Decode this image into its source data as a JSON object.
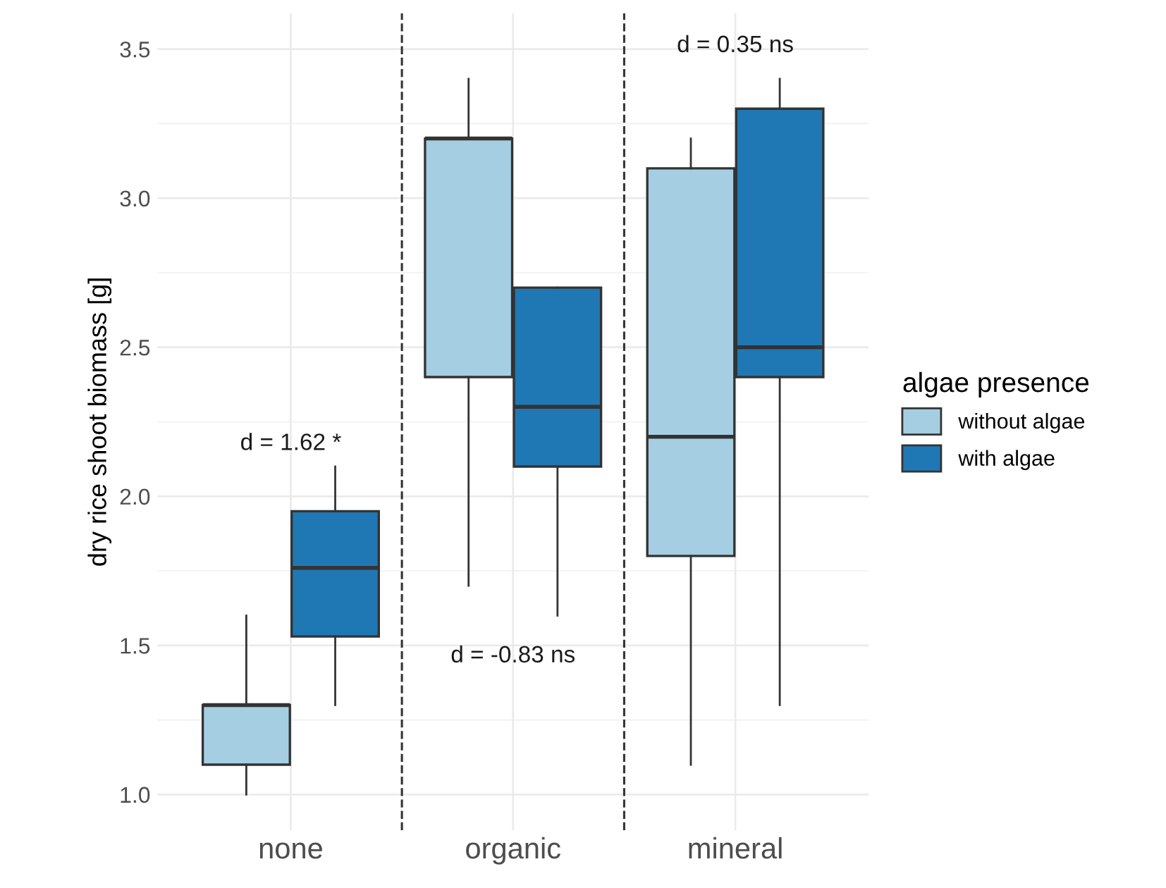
{
  "chart_data": {
    "type": "box",
    "ylabel": "dry rice shoot biomass [g]",
    "legend_title": "algae presence",
    "categories": [
      "none",
      "organic",
      "mineral"
    ],
    "series": [
      {
        "name": "without algae",
        "color": "#a6cee3",
        "boxes": [
          {
            "low": 1.0,
            "q1": 1.1,
            "median": 1.3,
            "q3": 1.3,
            "high": 1.6
          },
          {
            "low": 1.7,
            "q1": 2.4,
            "median": 3.2,
            "q3": 3.2,
            "high": 3.4
          },
          {
            "low": 1.1,
            "q1": 1.8,
            "median": 2.2,
            "q3": 3.1,
            "high": 3.2
          }
        ]
      },
      {
        "name": "with algae",
        "color": "#1f78b4",
        "boxes": [
          {
            "low": 1.3,
            "q1": 1.53,
            "median": 1.76,
            "q3": 1.95,
            "high": 2.1
          },
          {
            "low": 1.6,
            "q1": 2.1,
            "median": 2.3,
            "q3": 2.7,
            "high": 2.7
          },
          {
            "low": 1.3,
            "q1": 2.4,
            "median": 2.5,
            "q3": 3.3,
            "high": 3.4
          }
        ]
      }
    ],
    "ylim": [
      0.88,
      3.62
    ],
    "yticks": [
      {
        "value": 1,
        "label": "1.0"
      },
      {
        "value": 1.5,
        "label": "1.5"
      },
      {
        "value": 2,
        "label": "2.0"
      },
      {
        "value": 2.5,
        "label": "2.5"
      },
      {
        "value": 3,
        "label": "3.0"
      },
      {
        "value": 3.5,
        "label": "3.5"
      }
    ],
    "grid": true,
    "legend": "right",
    "annotations": [
      "d = 1.62 *",
      "d = -0.83 ns",
      "d = 0.35 ns"
    ]
  }
}
